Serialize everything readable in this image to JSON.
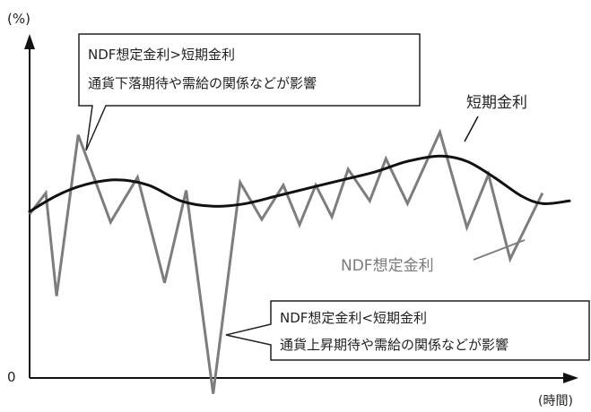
{
  "chart_data": {
    "type": "line",
    "ylabel": "(%)",
    "xlabel": "(時間)",
    "y_zero_label": "0",
    "x_range": [
      0,
      100
    ],
    "y_range": [
      0,
      100
    ],
    "series": [
      {
        "name": "短期金利",
        "color": "#111111",
        "style": "smooth",
        "points": [
          [
            0,
            63
          ],
          [
            5,
            69
          ],
          [
            10,
            73
          ],
          [
            16,
            75
          ],
          [
            22,
            73
          ],
          [
            28,
            67
          ],
          [
            34,
            65
          ],
          [
            40,
            66
          ],
          [
            46,
            69
          ],
          [
            52,
            72
          ],
          [
            58,
            75
          ],
          [
            64,
            78
          ],
          [
            70,
            82
          ],
          [
            76,
            84
          ],
          [
            81,
            82
          ],
          [
            86,
            76
          ],
          [
            91,
            69
          ],
          [
            95,
            66
          ],
          [
            100,
            67
          ]
        ]
      },
      {
        "name": "NDF想定金利",
        "color": "#7d7d7d",
        "style": "jagged",
        "points": [
          [
            0,
            62
          ],
          [
            3,
            70
          ],
          [
            5,
            31
          ],
          [
            9,
            92
          ],
          [
            15,
            59
          ],
          [
            20,
            76
          ],
          [
            25,
            36
          ],
          [
            29,
            71
          ],
          [
            34,
            -6
          ],
          [
            39,
            74
          ],
          [
            43,
            60
          ],
          [
            47,
            73
          ],
          [
            50,
            58
          ],
          [
            53,
            73
          ],
          [
            56,
            61
          ],
          [
            59,
            79
          ],
          [
            63,
            67
          ],
          [
            66,
            83
          ],
          [
            70,
            66
          ],
          [
            76,
            93
          ],
          [
            81,
            57
          ],
          [
            85,
            77
          ],
          [
            89,
            45
          ],
          [
            95,
            70
          ]
        ]
      }
    ],
    "annotations": [
      {
        "id": "upper",
        "lines": [
          "NDF想定金利>短期金利",
          "通貨下落期待や需給の関係などが影響"
        ]
      },
      {
        "id": "lower",
        "lines": [
          "NDF想定金利<短期金利",
          "通貨上昇期待や需給の関係などが影響"
        ]
      }
    ],
    "series_labels": {
      "short_rate": "短期金利",
      "ndf_rate": "NDF想定金利"
    }
  }
}
